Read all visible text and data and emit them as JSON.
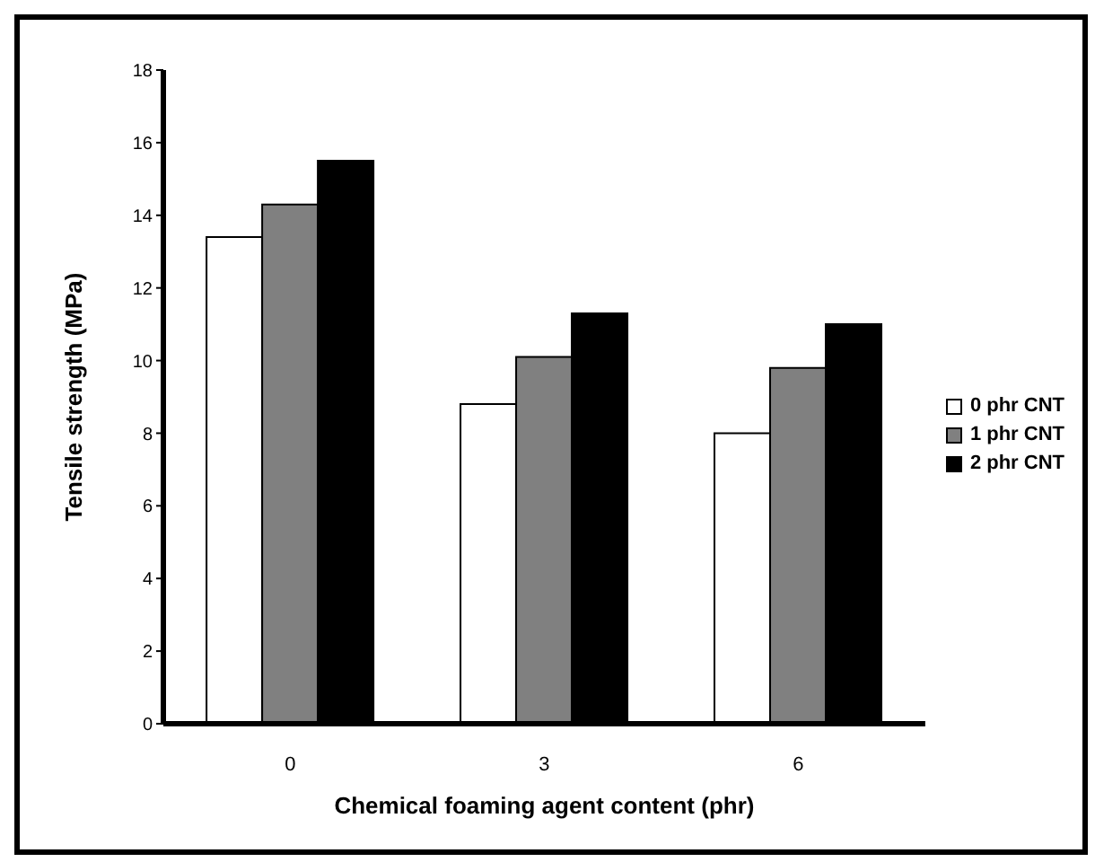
{
  "chart_data": {
    "type": "bar",
    "xlabel": "Chemical foaming agent content (phr)",
    "ylabel": "Tensile strength (MPa)",
    "categories": [
      "0",
      "3",
      "6"
    ],
    "series": [
      {
        "name": "0 phr CNT",
        "color": "#ffffff",
        "values": [
          13.4,
          8.8,
          8.0
        ]
      },
      {
        "name": "1 phr CNT",
        "color": "#808080",
        "values": [
          14.3,
          10.1,
          9.8
        ]
      },
      {
        "name": "2 phr CNT",
        "color": "#000000",
        "values": [
          15.5,
          11.3,
          11.0
        ]
      }
    ],
    "ylim": [
      0,
      18
    ],
    "yticks": [
      0,
      2,
      4,
      6,
      8,
      10,
      12,
      14,
      16,
      18
    ],
    "grid": false,
    "legend": "right"
  }
}
